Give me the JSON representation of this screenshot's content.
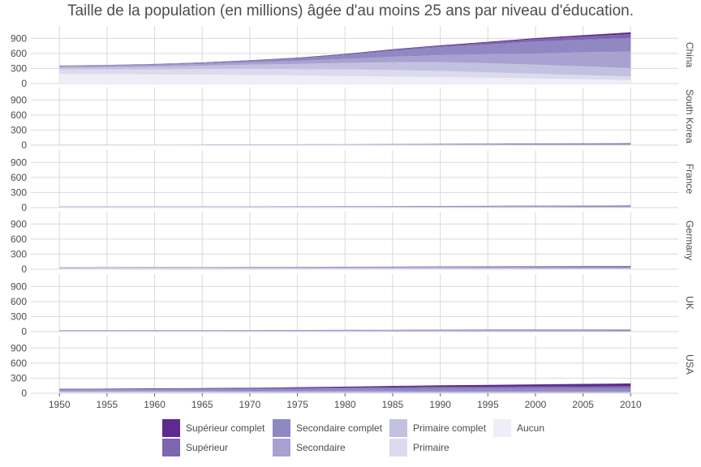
{
  "chart_data": {
    "type": "area",
    "title": "Taille de la population (en millions) âgée d'au moins 25 ans par niveau d'éducation.",
    "x_ticks": [
      "1950",
      "1955",
      "1960",
      "1965",
      "1970",
      "1975",
      "1980",
      "1985",
      "1990",
      "1995",
      "2000",
      "2005",
      "2010"
    ],
    "y_ticks": [
      "0",
      "300",
      "600",
      "900"
    ],
    "ylim": [
      0,
      1050
    ],
    "xlim": [
      1947,
      2015
    ],
    "grid": true,
    "legend_position": "bottom",
    "stack_order": [
      "Aucun",
      "Primaire",
      "Primaire complet",
      "Secondaire",
      "Secondaire complet",
      "Supérieur",
      "Supérieur complet"
    ],
    "legend": [
      {
        "label": "Supérieur complet",
        "color": "#5e2a90"
      },
      {
        "label": "Supérieur",
        "color": "#7d65b0"
      },
      {
        "label": "Secondaire complet",
        "color": "#8f88c2"
      },
      {
        "label": "Secondaire",
        "color": "#a9a2d0"
      },
      {
        "label": "Primaire complet",
        "color": "#c3c1e0"
      },
      {
        "label": "Primaire",
        "color": "#dcdaec"
      },
      {
        "label": "Aucun",
        "color": "#efeef6"
      }
    ],
    "years": [
      1950,
      1955,
      1960,
      1965,
      1970,
      1975,
      1980,
      1985,
      1990,
      1995,
      2000,
      2005,
      2010
    ],
    "panels": [
      {
        "name": "China",
        "series": {
          "Aucun": [
            190,
            185,
            180,
            178,
            170,
            160,
            150,
            140,
            130,
            115,
            100,
            85,
            70
          ],
          "Primaire": [
            90,
            95,
            100,
            110,
            120,
            125,
            130,
            128,
            120,
            108,
            95,
            82,
            70
          ],
          "Primaire complet": [
            40,
            45,
            55,
            65,
            85,
            105,
            130,
            155,
            175,
            180,
            180,
            175,
            165
          ],
          "Secondaire": [
            20,
            25,
            30,
            35,
            45,
            60,
            80,
            110,
            140,
            180,
            220,
            280,
            330
          ],
          "Secondaire complet": [
            10,
            12,
            15,
            20,
            30,
            45,
            75,
            120,
            160,
            195,
            240,
            250,
            270
          ],
          "Supérieur": [
            5,
            6,
            7,
            8,
            10,
            13,
            16,
            20,
            25,
            35,
            50,
            65,
            80
          ],
          "Supérieur complet": [
            2,
            2,
            3,
            4,
            5,
            6,
            8,
            10,
            12,
            16,
            20,
            26,
            35
          ]
        }
      },
      {
        "name": "South Korea",
        "series": {
          "Aucun": [
            5,
            5,
            5,
            4,
            4,
            3,
            3,
            2,
            2,
            2,
            1,
            1,
            1
          ],
          "Primaire": [
            2,
            2,
            2,
            3,
            3,
            3,
            3,
            3,
            3,
            3,
            3,
            2,
            2
          ],
          "Primaire complet": [
            1,
            1,
            2,
            2,
            3,
            3,
            4,
            4,
            4,
            4,
            4,
            3,
            3
          ],
          "Secondaire": [
            1,
            1,
            1,
            2,
            2,
            3,
            3,
            4,
            4,
            4,
            4,
            4,
            4
          ],
          "Secondaire complet": [
            1,
            1,
            1,
            1,
            2,
            3,
            4,
            6,
            8,
            10,
            12,
            13,
            14
          ],
          "Supérieur": [
            0,
            0,
            0,
            1,
            1,
            1,
            1,
            2,
            2,
            3,
            3,
            4,
            4
          ],
          "Supérieur complet": [
            0,
            0,
            0,
            0,
            1,
            1,
            1,
            2,
            3,
            4,
            6,
            8,
            10
          ]
        }
      },
      {
        "name": "France",
        "series": {
          "Aucun": [
            3,
            3,
            3,
            3,
            2,
            2,
            2,
            2,
            1,
            1,
            1,
            1,
            1
          ],
          "Primaire": [
            8,
            8,
            8,
            7,
            7,
            6,
            6,
            5,
            5,
            4,
            4,
            3,
            3
          ],
          "Primaire complet": [
            6,
            6,
            6,
            6,
            6,
            6,
            6,
            6,
            5,
            5,
            5,
            4,
            4
          ],
          "Secondaire": [
            3,
            3,
            4,
            4,
            5,
            6,
            7,
            8,
            9,
            9,
            9,
            9,
            9
          ],
          "Secondaire complet": [
            1,
            1,
            1,
            2,
            2,
            3,
            4,
            5,
            6,
            8,
            9,
            10,
            11
          ],
          "Supérieur": [
            0,
            0,
            1,
            1,
            1,
            1,
            2,
            2,
            3,
            3,
            4,
            4,
            5
          ],
          "Supérieur complet": [
            1,
            1,
            1,
            1,
            1,
            2,
            2,
            3,
            3,
            4,
            5,
            6,
            7
          ]
        }
      },
      {
        "name": "Germany",
        "series": {
          "Aucun": [
            2,
            2,
            2,
            2,
            2,
            2,
            1,
            1,
            1,
            1,
            1,
            1,
            1
          ],
          "Primaire": [
            15,
            15,
            15,
            14,
            13,
            12,
            11,
            10,
            9,
            8,
            7,
            6,
            5
          ],
          "Primaire complet": [
            8,
            9,
            9,
            10,
            10,
            10,
            10,
            10,
            10,
            9,
            9,
            8,
            8
          ],
          "Secondaire": [
            10,
            10,
            11,
            12,
            13,
            14,
            15,
            16,
            17,
            18,
            18,
            18,
            18
          ],
          "Secondaire complet": [
            2,
            2,
            3,
            3,
            4,
            5,
            6,
            8,
            10,
            12,
            14,
            16,
            18
          ],
          "Supérieur": [
            1,
            1,
            1,
            1,
            1,
            2,
            2,
            2,
            3,
            3,
            3,
            4,
            4
          ],
          "Supérieur complet": [
            1,
            1,
            1,
            1,
            2,
            2,
            3,
            4,
            5,
            6,
            7,
            8,
            9
          ]
        }
      },
      {
        "name": "UK",
        "series": {
          "Aucun": [
            1,
            1,
            1,
            1,
            1,
            1,
            1,
            1,
            1,
            1,
            1,
            0,
            0
          ],
          "Primaire": [
            6,
            6,
            6,
            6,
            5,
            5,
            5,
            4,
            4,
            3,
            3,
            3,
            2
          ],
          "Primaire complet": [
            8,
            8,
            8,
            8,
            7,
            7,
            6,
            6,
            5,
            5,
            4,
            4,
            3
          ],
          "Secondaire": [
            10,
            10,
            11,
            11,
            12,
            12,
            12,
            12,
            12,
            12,
            11,
            11,
            10
          ],
          "Secondaire complet": [
            2,
            2,
            3,
            3,
            4,
            5,
            6,
            7,
            8,
            9,
            10,
            11,
            12
          ],
          "Supérieur": [
            1,
            1,
            1,
            1,
            1,
            1,
            2,
            2,
            2,
            3,
            3,
            3,
            4
          ],
          "Supérieur complet": [
            1,
            1,
            1,
            1,
            1,
            2,
            2,
            3,
            4,
            5,
            6,
            7,
            8
          ]
        }
      },
      {
        "name": "USA",
        "series": {
          "Aucun": [
            3,
            3,
            3,
            2,
            2,
            2,
            2,
            2,
            2,
            2,
            2,
            2,
            2
          ],
          "Primaire": [
            15,
            15,
            14,
            13,
            12,
            11,
            10,
            9,
            8,
            8,
            7,
            7,
            7
          ],
          "Primaire complet": [
            15,
            15,
            15,
            14,
            13,
            12,
            11,
            10,
            9,
            9,
            9,
            9,
            9
          ],
          "Secondaire": [
            20,
            20,
            21,
            21,
            22,
            22,
            22,
            21,
            20,
            19,
            18,
            17,
            16
          ],
          "Secondaire complet": [
            20,
            23,
            26,
            30,
            35,
            40,
            48,
            55,
            60,
            62,
            65,
            68,
            70
          ],
          "Supérieur": [
            8,
            9,
            10,
            12,
            14,
            17,
            20,
            24,
            28,
            30,
            32,
            34,
            36
          ],
          "Supérieur complet": [
            6,
            7,
            8,
            10,
            12,
            15,
            19,
            24,
            30,
            36,
            42,
            48,
            55
          ]
        }
      }
    ]
  }
}
